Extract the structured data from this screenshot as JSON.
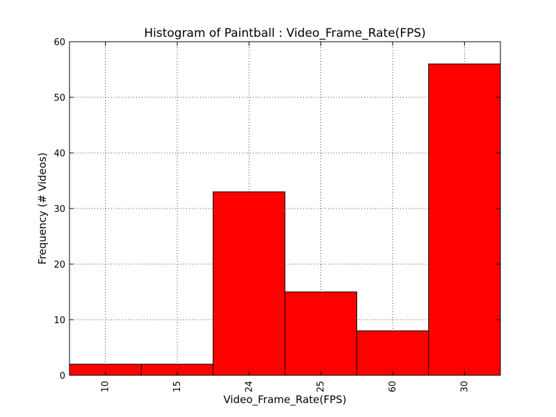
{
  "chart_data": {
    "type": "bar",
    "title": "Histogram of Paintball : Video_Frame_Rate(FPS)",
    "xlabel": "Video_Frame_Rate(FPS)",
    "ylabel": "Frequency (# Videos)",
    "categories": [
      "10",
      "15",
      "24",
      "25",
      "60",
      "30"
    ],
    "values": [
      2,
      2,
      33,
      15,
      8,
      56
    ],
    "ylim": [
      0,
      60
    ],
    "yticks": [
      "0",
      "10",
      "20",
      "30",
      "40",
      "50",
      "60"
    ],
    "grid": true,
    "bar_color": "#ff0000",
    "edge_color": "#000000"
  }
}
